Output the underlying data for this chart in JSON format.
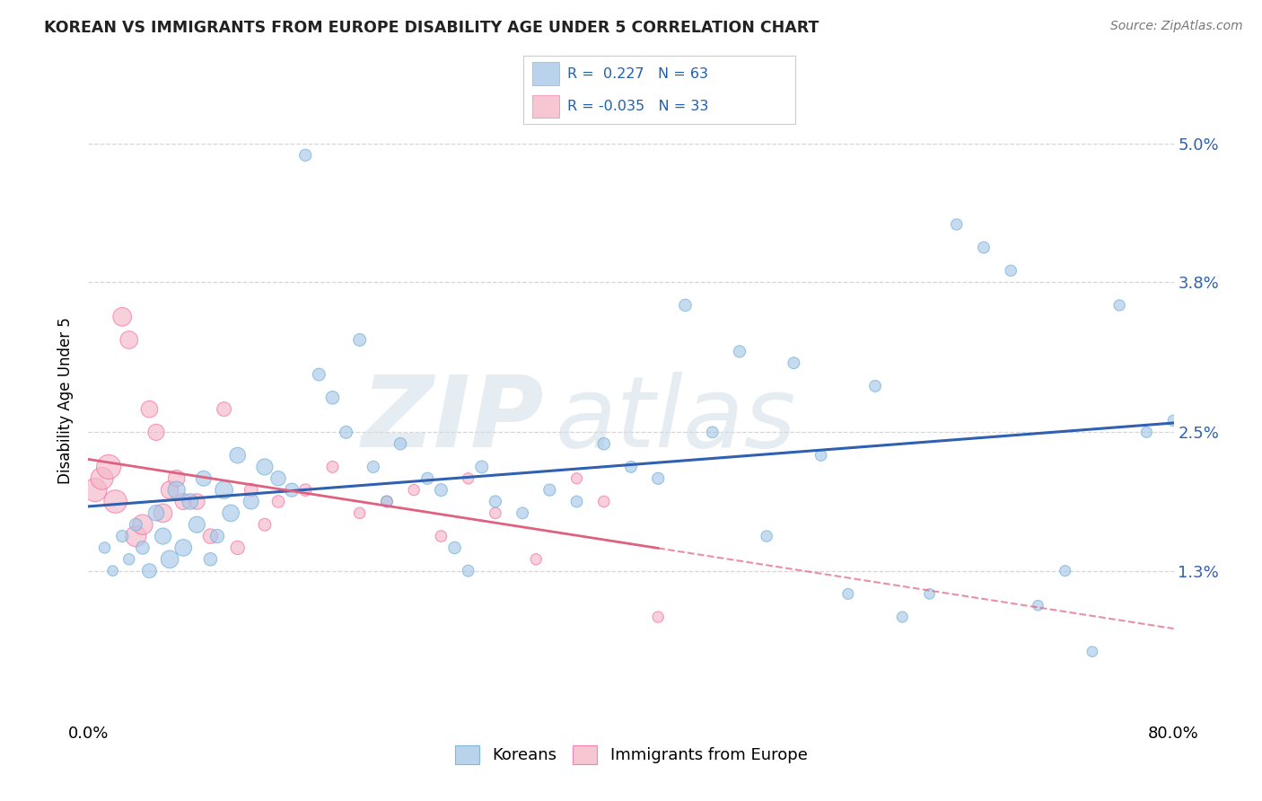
{
  "title": "KOREAN VS IMMIGRANTS FROM EUROPE DISABILITY AGE UNDER 5 CORRELATION CHART",
  "source": "Source: ZipAtlas.com",
  "ylabel": "Disability Age Under 5",
  "ytick_values": [
    1.3,
    2.5,
    3.8,
    5.0
  ],
  "xlim": [
    0,
    80
  ],
  "ylim": [
    0,
    5.55
  ],
  "legend_labels": [
    "Koreans",
    "Immigrants from Europe"
  ],
  "korean_R": "0.227",
  "korean_N": "63",
  "europe_R": "-0.035",
  "europe_N": "33",
  "korean_color": "#a8c8e8",
  "europe_color": "#f4b8c8",
  "korean_edge_color": "#6baed6",
  "europe_edge_color": "#f768a1",
  "korean_line_color": "#3060b0",
  "europe_line_color": "#e06080",
  "background_color": "#ffffff",
  "grid_color": "#cccccc",
  "korean_scatter_x": [
    1.2,
    1.8,
    2.5,
    3.0,
    3.5,
    4.0,
    4.5,
    5.0,
    5.5,
    6.0,
    6.5,
    7.0,
    7.5,
    8.0,
    8.5,
    9.0,
    9.5,
    10.0,
    10.5,
    11.0,
    12.0,
    13.0,
    14.0,
    15.0,
    16.0,
    17.0,
    18.0,
    19.0,
    20.0,
    21.0,
    22.0,
    23.0,
    25.0,
    26.0,
    27.0,
    28.0,
    29.0,
    30.0,
    32.0,
    34.0,
    36.0,
    38.0,
    40.0,
    42.0,
    44.0,
    46.0,
    48.0,
    50.0,
    52.0,
    54.0,
    56.0,
    58.0,
    60.0,
    62.0,
    64.0,
    66.0,
    68.0,
    70.0,
    72.0,
    74.0,
    76.0,
    78.0,
    80.0
  ],
  "korean_scatter_y": [
    1.5,
    1.3,
    1.6,
    1.4,
    1.7,
    1.5,
    1.3,
    1.8,
    1.6,
    1.4,
    2.0,
    1.5,
    1.9,
    1.7,
    2.1,
    1.4,
    1.6,
    2.0,
    1.8,
    2.3,
    1.9,
    2.2,
    2.1,
    2.0,
    4.9,
    3.0,
    2.8,
    2.5,
    3.3,
    2.2,
    1.9,
    2.4,
    2.1,
    2.0,
    1.5,
    1.3,
    2.2,
    1.9,
    1.8,
    2.0,
    1.9,
    2.4,
    2.2,
    2.1,
    3.6,
    2.5,
    3.2,
    1.6,
    3.1,
    2.3,
    1.1,
    2.9,
    0.9,
    1.1,
    4.3,
    4.1,
    3.9,
    1.0,
    1.3,
    0.6,
    3.6,
    2.5,
    2.6
  ],
  "korean_scatter_s": [
    80,
    70,
    90,
    80,
    100,
    110,
    130,
    160,
    170,
    200,
    190,
    180,
    160,
    170,
    150,
    110,
    120,
    200,
    180,
    160,
    150,
    170,
    140,
    120,
    90,
    100,
    110,
    100,
    100,
    90,
    85,
    95,
    90,
    100,
    95,
    85,
    100,
    90,
    85,
    90,
    85,
    95,
    85,
    90,
    95,
    85,
    90,
    80,
    85,
    80,
    75,
    85,
    75,
    70,
    80,
    85,
    80,
    70,
    75,
    70,
    78,
    75,
    85
  ],
  "europe_scatter_x": [
    0.5,
    1.0,
    1.5,
    2.0,
    2.5,
    3.0,
    3.5,
    4.0,
    4.5,
    5.0,
    5.5,
    6.0,
    6.5,
    7.0,
    8.0,
    9.0,
    10.0,
    11.0,
    12.0,
    13.0,
    14.0,
    16.0,
    18.0,
    20.0,
    22.0,
    24.0,
    26.0,
    28.0,
    30.0,
    33.0,
    36.0,
    38.0,
    42.0
  ],
  "europe_scatter_y": [
    2.0,
    2.1,
    2.2,
    1.9,
    3.5,
    3.3,
    1.6,
    1.7,
    2.7,
    2.5,
    1.8,
    2.0,
    2.1,
    1.9,
    1.9,
    1.6,
    2.7,
    1.5,
    2.0,
    1.7,
    1.9,
    2.0,
    2.2,
    1.8,
    1.9,
    2.0,
    1.6,
    2.1,
    1.8,
    1.4,
    2.1,
    1.9,
    0.9
  ],
  "europe_scatter_s": [
    350,
    320,
    380,
    340,
    220,
    200,
    280,
    260,
    180,
    170,
    220,
    200,
    180,
    170,
    160,
    140,
    130,
    120,
    110,
    100,
    95,
    95,
    85,
    80,
    85,
    78,
    82,
    78,
    82,
    78,
    75,
    80,
    78
  ]
}
